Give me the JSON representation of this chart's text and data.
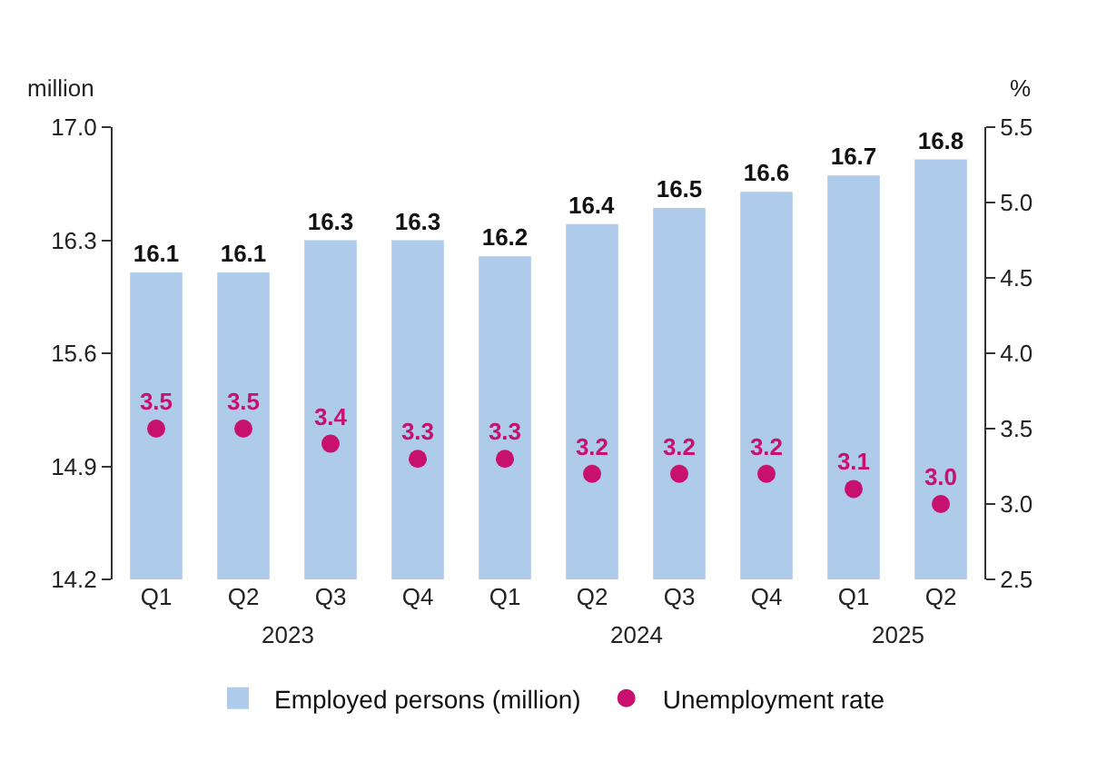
{
  "chart_data": {
    "type": "bar",
    "ylabel": "million",
    "y2label": "%",
    "categories": [
      "Q1",
      "Q2",
      "Q3",
      "Q4",
      "Q1",
      "Q2",
      "Q3",
      "Q4",
      "Q1",
      "Q2"
    ],
    "series": [
      {
        "name": "Employed persons (million)",
        "color": "#afcbeb",
        "values": [
          16.1,
          16.1,
          16.3,
          16.3,
          16.2,
          16.4,
          16.5,
          16.6,
          16.7,
          16.8
        ],
        "value_labels": [
          "16.1",
          "16.1",
          "16.3",
          "16.3",
          "16.2",
          "16.4",
          "16.5",
          "16.6",
          "16.7",
          "16.8"
        ]
      },
      {
        "name": "Unemployment rate",
        "type": "scatter",
        "axis": "y2",
        "color": "#c8106e",
        "values": [
          3.5,
          3.5,
          3.4,
          3.3,
          3.3,
          3.2,
          3.2,
          3.2,
          3.1,
          3.0
        ],
        "value_labels": [
          "3.5",
          "3.5",
          "3.4",
          "3.3",
          "3.3",
          "3.2",
          "3.2",
          "3.2",
          "3.1",
          "3.0"
        ]
      }
    ],
    "ylim": [
      14.2,
      17.0
    ],
    "yticks": [
      14.2,
      14.9,
      15.6,
      16.3,
      {
        "value": 17.0,
        "label": "17.0"
      }
    ],
    "y2lim": [
      2.5,
      5.5
    ],
    "y2ticks": [
      2.5,
      {
        "value": 3.0,
        "label": "3.0"
      },
      3.5,
      {
        "value": 4.0,
        "label": "4.0"
      },
      4.5,
      {
        "value": 5.0,
        "label": "5.0"
      },
      5.5
    ],
    "annotations": [
      "2023",
      "2024",
      "2025"
    ],
    "grid": false,
    "legend": "bottom",
    "marker": "circle"
  }
}
